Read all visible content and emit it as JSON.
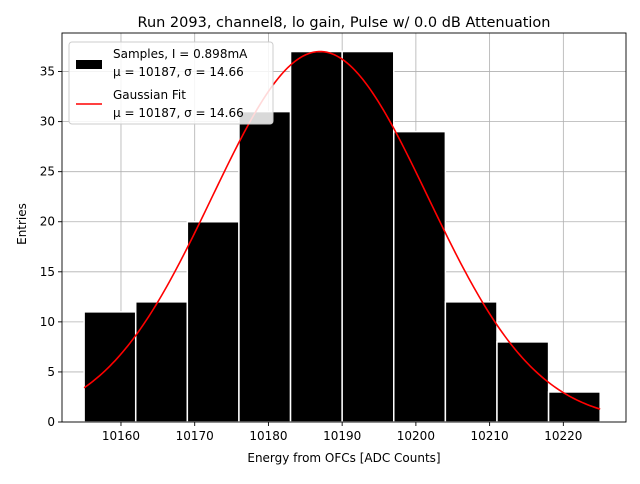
{
  "chart_data": {
    "type": "bar",
    "title": "Run 2093, channel8, lo gain, Pulse w/ 0.0 dB Attenuation",
    "xlabel": "Energy from OFCs [ADC Counts]",
    "ylabel": "Entries",
    "xlim": [
      10152,
      10228.5
    ],
    "ylim": [
      0,
      38.85
    ],
    "xticks": [
      10160,
      10170,
      10180,
      10190,
      10200,
      10210,
      10220
    ],
    "xtick_labels": [
      "10160",
      "10170",
      "10180",
      "10190",
      "10200",
      "10210",
      "10220"
    ],
    "yticks": [
      0,
      5,
      10,
      15,
      20,
      25,
      30,
      35
    ],
    "ytick_labels": [
      "0",
      "5",
      "10",
      "15",
      "20",
      "25",
      "30",
      "35"
    ],
    "grid": true,
    "legend_placement": "upper-left",
    "bins": [
      {
        "x0": 10155.0,
        "x1": 10162.0,
        "count": 11
      },
      {
        "x0": 10162.0,
        "x1": 10169.0,
        "count": 12
      },
      {
        "x0": 10169.0,
        "x1": 10176.0,
        "count": 20
      },
      {
        "x0": 10176.0,
        "x1": 10183.0,
        "count": 31
      },
      {
        "x0": 10183.0,
        "x1": 10190.0,
        "count": 37
      },
      {
        "x0": 10190.0,
        "x1": 10197.0,
        "count": 37
      },
      {
        "x0": 10197.0,
        "x1": 10204.0,
        "count": 29
      },
      {
        "x0": 10204.0,
        "x1": 10211.0,
        "count": 12
      },
      {
        "x0": 10211.0,
        "x1": 10218.0,
        "count": 8
      },
      {
        "x0": 10218.0,
        "x1": 10225.0,
        "count": 3
      }
    ],
    "series": [
      {
        "name": "Samples, I = 0.898mA",
        "name_line2": "μ = 10187, σ = 14.66",
        "kind": "histogram",
        "color": "#000000"
      },
      {
        "name": "Gaussian Fit",
        "name_line2": "μ = 10187, σ = 14.66",
        "kind": "line",
        "color": "#ff0000",
        "fit": {
          "amplitude": 37.0,
          "mu": 10187,
          "sigma": 14.66,
          "x_range": [
            10155,
            10225
          ]
        }
      }
    ]
  }
}
